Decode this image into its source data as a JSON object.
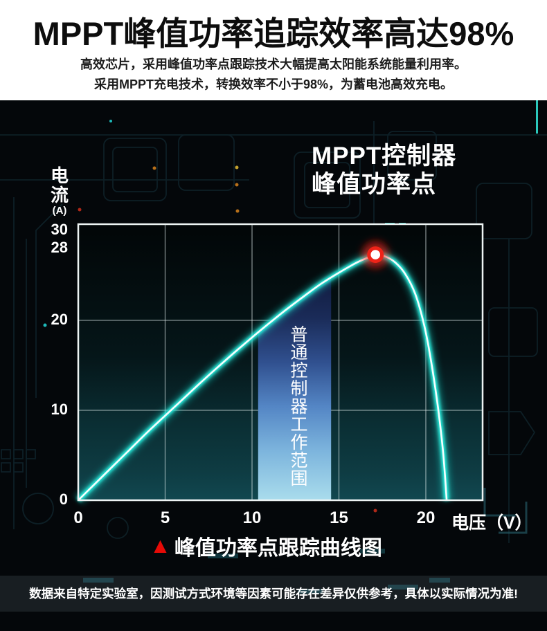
{
  "header": {
    "title": "MPPT峰值功率追踪效率高达98%",
    "subtitle_line1": "高效芯片，采用峰值功率点跟踪技术大幅提高太阳能系统能量利用率。",
    "subtitle_line2": "采用MPPT充电技术，转换效率不小于98%，为蓄电池高效充电。"
  },
  "chart_data": {
    "type": "line",
    "title_line1": "MPPT控制器",
    "title_line2": "峰值功率点",
    "ylabel": "电流",
    "ylabel_unit": "(A)",
    "xlabel": "电压（V）",
    "yticks": [
      30,
      28,
      20,
      10,
      0
    ],
    "xticks": [
      0,
      5,
      10,
      15,
      20
    ],
    "grid_y": [
      20,
      10
    ],
    "grid_x": [
      5,
      10,
      15,
      20
    ],
    "xlim": [
      0,
      23.3
    ],
    "ylim": [
      0,
      30.7
    ],
    "points": [
      [
        0,
        0
      ],
      [
        1,
        1.9
      ],
      [
        2,
        3.8
      ],
      [
        3,
        5.7
      ],
      [
        4,
        7.6
      ],
      [
        5,
        9.4
      ],
      [
        6,
        11.2
      ],
      [
        7,
        13.0
      ],
      [
        8,
        14.75
      ],
      [
        9,
        16.45
      ],
      [
        10,
        18.1
      ],
      [
        11,
        19.7
      ],
      [
        12,
        21.25
      ],
      [
        13,
        22.7
      ],
      [
        14,
        24.1
      ],
      [
        15,
        25.3
      ],
      [
        16,
        26.4
      ],
      [
        16.7,
        27.0
      ],
      [
        17.1,
        27.3
      ],
      [
        17.6,
        27.15
      ],
      [
        18.2,
        26.5
      ],
      [
        18.8,
        25.2
      ],
      [
        19.4,
        22.9
      ],
      [
        19.9,
        19.5
      ],
      [
        20.3,
        15.5
      ],
      [
        20.7,
        10.3
      ],
      [
        21.0,
        5.2
      ],
      [
        21.2,
        0
      ]
    ],
    "peak_marker": {
      "x": 17.1,
      "y": 27.3
    },
    "band": {
      "x0": 10.35,
      "x1": 14.55,
      "label": "普通控制器工作范围"
    },
    "colors": {
      "curve": "#2fe6d6",
      "curve_core": "#f4fffe",
      "marker_ring": "#ee2318",
      "band_top": "#111c40",
      "band_bottom": "#a9dcec"
    }
  },
  "caption": {
    "marker": "▲",
    "text": "峰值功率点跟踪曲线图"
  },
  "disclaimer": "数据来自特定实验室，因测试方式环境等因素可能存在差异仅供参考，具体以实际情况为准!"
}
